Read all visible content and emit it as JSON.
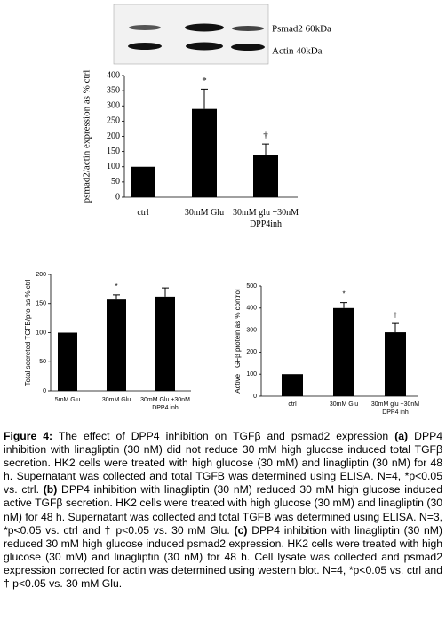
{
  "chart_data": [
    {
      "type": "bar",
      "ylabel": "psmad2/actin expression as % ctrl",
      "categories": [
        "ctrl",
        "30mM Glu",
        "30mM glu +30nM DPP4inh"
      ],
      "values": [
        100,
        290,
        140
      ],
      "errors": [
        null,
        65,
        35
      ],
      "annotations": [
        null,
        "*",
        "†"
      ],
      "color": "#000000",
      "ylim": [
        0,
        400
      ],
      "yticks": [
        0,
        50,
        100,
        150,
        200,
        250,
        300,
        350,
        400
      ],
      "blot_labels": [
        "Psmad2 60kDa",
        "Actin 40kDa"
      ]
    },
    {
      "type": "bar",
      "ylabel": "Total secreted TGFB/pro as % ctrl",
      "categories": [
        "5mM Glu",
        "30mM Glu",
        "30mM Glu +30nM DPP4 inh"
      ],
      "values": [
        100,
        157,
        162
      ],
      "errors": [
        null,
        8,
        15
      ],
      "annotations": [
        null,
        "*",
        null
      ],
      "color": "#000000",
      "ylim": [
        0,
        200
      ],
      "yticks": [
        0,
        50,
        100,
        150,
        200
      ]
    },
    {
      "type": "bar",
      "ylabel": "Active TGFβ protein as % control",
      "categories": [
        "ctrl",
        "30mM Glu",
        "30mM glu +30nM DPP4 inh"
      ],
      "values": [
        100,
        400,
        290
      ],
      "errors": [
        null,
        25,
        40
      ],
      "annotations": [
        null,
        "*",
        "†"
      ],
      "color": "#000000",
      "ylim": [
        0,
        500
      ],
      "yticks": [
        0,
        100,
        200,
        300,
        400,
        500
      ]
    }
  ],
  "caption": {
    "label": "Figure 4:",
    "segments": [
      " The effect of DPP4 inhibition on TGFβ and psmad2 expression ",
      "(a)",
      " DPP4 inhibition with linagliptin (30 nM) did not reduce 30 mM high glucose induced total TGFβ secretion. HK2 cells were treated with high glucose (30 mM) and linagliptin (30 nM) for 48 h. Supernatant was collected and total TGFB was determined using ELISA. N=4, *p<0.05 vs. ctrl. ",
      "(b)",
      " DPP4 inhibition with linagliptin (30 nM) reduced 30 mM high glucose induced active TGFβ secretion. HK2 cells were treated with high glucose (30 mM) and linagliptin (30 nM) for 48 h. Supernatant was collected and total TGFB was determined using ELISA. N=3, *p<0.05 vs. ctrl and † p<0.05 vs. 30 mM Glu. ",
      "(c)",
      " DPP4 inhibition with linagliptin (30 nM) reduced 30 mM high glucose induced psmad2 expression. HK2 cells were treated with high glucose (30 mM) and linagliptin (30 nM) for 48 h. Cell lysate was collected and psmad2 expression corrected for actin was determined using western blot. N=4, *p<0.05 vs. ctrl and † p<0.05 vs. 30 mM Glu."
    ]
  }
}
